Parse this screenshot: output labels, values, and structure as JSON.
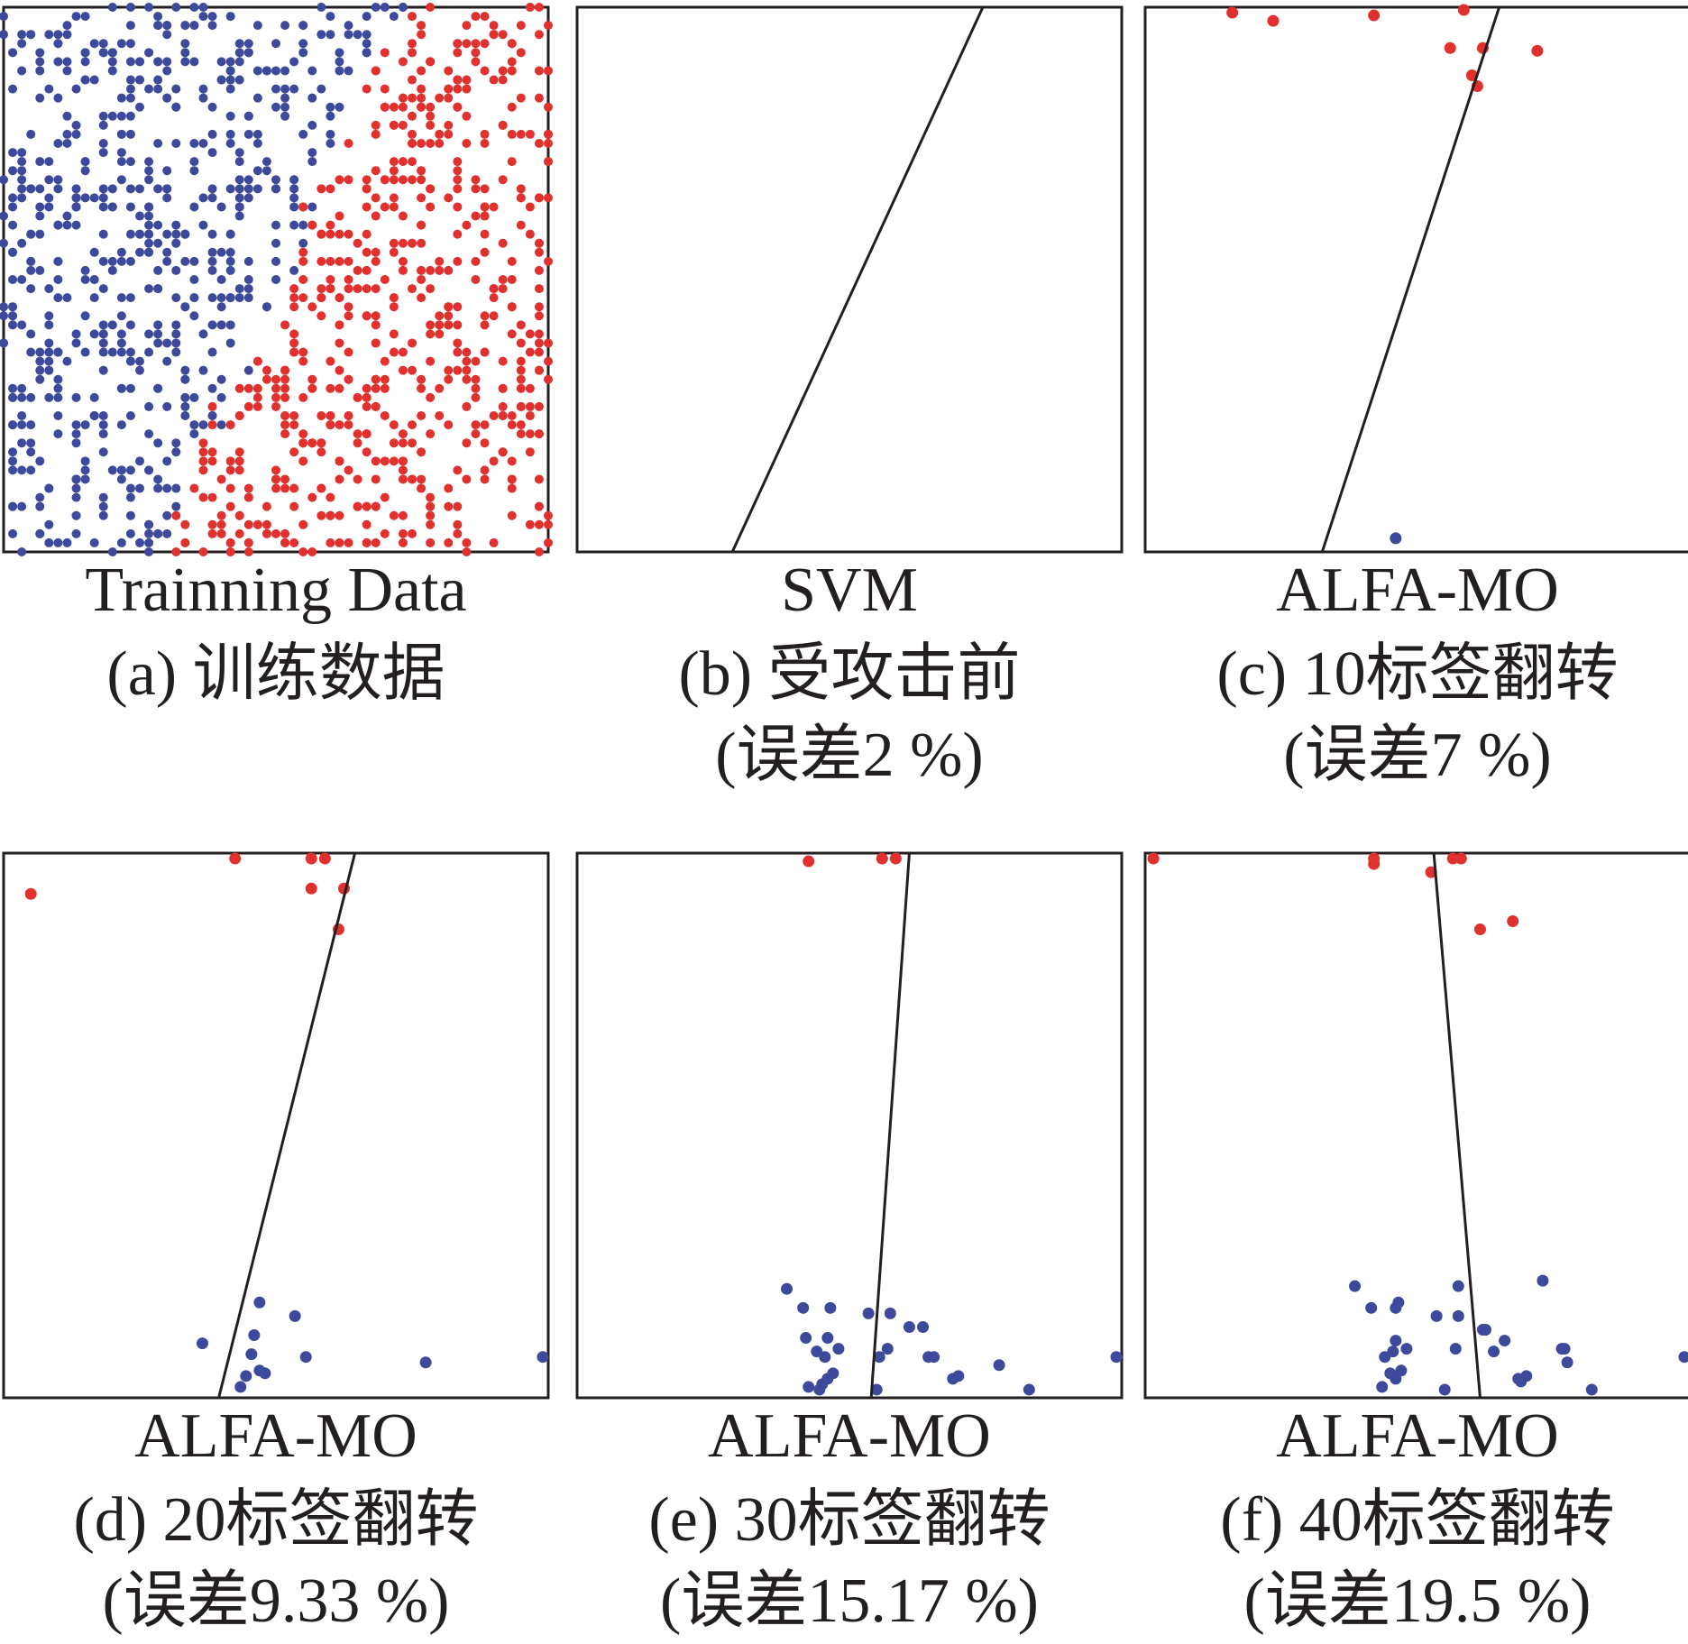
{
  "colors": {
    "class_pos": "#e0312f",
    "class_neg": "#3d4a9c",
    "line": "#231f20"
  },
  "chart_data": [
    {
      "id": "a",
      "type": "scatter",
      "captions": [
        "Trainning Data",
        "(a) 训练数据"
      ],
      "xlim": [
        0,
        1
      ],
      "ylim": [
        0,
        1
      ],
      "grid": false,
      "boundary": null,
      "generated": {
        "n_per_class": 600,
        "true_boundary": {
          "x_at_y0": 0.28,
          "x_at_y1": 0.74
        }
      },
      "series": []
    },
    {
      "id": "b",
      "type": "scatter",
      "captions": [
        "SVM",
        "(b) 受攻击前",
        "(误差2 %)"
      ],
      "xlim": [
        0,
        1
      ],
      "ylim": [
        0,
        1
      ],
      "grid": false,
      "boundary": {
        "x_at_y0": 0.285,
        "x_at_y1": 0.745
      },
      "series": []
    },
    {
      "id": "c",
      "type": "scatter",
      "captions": [
        "ALFA-MO",
        "(c) 10标签翻转",
        "(误差7 %)"
      ],
      "xlim": [
        0,
        1
      ],
      "ylim": [
        0,
        1
      ],
      "grid": false,
      "boundary": {
        "x_at_y0": 0.325,
        "x_at_y1": 0.65
      },
      "series": [
        {
          "class": "pos",
          "points": [
            [
              0.16,
              0.99
            ],
            [
              0.235,
              0.975
            ],
            [
              0.42,
              0.985
            ],
            [
              0.585,
              0.995
            ],
            [
              0.56,
              0.925
            ],
            [
              0.62,
              0.925
            ],
            [
              0.72,
              0.92
            ],
            [
              0.6,
              0.875
            ],
            [
              0.61,
              0.855
            ]
          ]
        },
        {
          "class": "neg",
          "points": [
            [
              0.46,
              0.025
            ]
          ]
        }
      ]
    },
    {
      "id": "d",
      "type": "scatter",
      "captions": [
        "ALFA-MO",
        "(d) 20标签翻转",
        "(误差9.33 %)"
      ],
      "xlim": [
        0,
        1
      ],
      "ylim": [
        0,
        1
      ],
      "grid": false,
      "boundary": {
        "x_at_y0": 0.395,
        "x_at_y1": 0.645
      },
      "series": [
        {
          "class": "pos",
          "points": [
            [
              0.05,
              0.925
            ],
            [
              0.425,
              0.99
            ],
            [
              0.565,
              0.99
            ],
            [
              0.59,
              0.99
            ],
            [
              0.565,
              0.935
            ],
            [
              0.625,
              0.935
            ],
            [
              0.615,
              0.86
            ]
          ]
        },
        {
          "class": "neg",
          "points": [
            [
              0.365,
              0.1
            ],
            [
              0.47,
              0.175
            ],
            [
              0.535,
              0.15
            ],
            [
              0.46,
              0.115
            ],
            [
              0.455,
              0.08
            ],
            [
              0.47,
              0.05
            ],
            [
              0.445,
              0.04
            ],
            [
              0.48,
              0.045
            ],
            [
              0.435,
              0.02
            ],
            [
              0.555,
              0.075
            ],
            [
              0.775,
              0.065
            ],
            [
              0.99,
              0.075
            ]
          ]
        }
      ]
    },
    {
      "id": "e",
      "type": "scatter",
      "captions": [
        "ALFA-MO",
        "(e) 30标签翻转",
        "(误差15.17 %)"
      ],
      "xlim": [
        0,
        1
      ],
      "ylim": [
        0,
        1
      ],
      "grid": false,
      "boundary": {
        "x_at_y0": 0.54,
        "x_at_y1": 0.61
      },
      "series": [
        {
          "class": "pos",
          "points": [
            [
              0.425,
              0.985
            ],
            [
              0.56,
              0.99
            ],
            [
              0.585,
              0.99
            ]
          ]
        },
        {
          "class": "neg",
          "points": [
            [
              0.385,
              0.2
            ],
            [
              0.415,
              0.165
            ],
            [
              0.465,
              0.165
            ],
            [
              0.535,
              0.155
            ],
            [
              0.575,
              0.155
            ],
            [
              0.61,
              0.13
            ],
            [
              0.635,
              0.13
            ],
            [
              0.42,
              0.11
            ],
            [
              0.46,
              0.11
            ],
            [
              0.44,
              0.085
            ],
            [
              0.48,
              0.09
            ],
            [
              0.455,
              0.075
            ],
            [
              0.57,
              0.09
            ],
            [
              0.645,
              0.075
            ],
            [
              0.655,
              0.075
            ],
            [
              0.555,
              0.075
            ],
            [
              0.47,
              0.045
            ],
            [
              0.46,
              0.035
            ],
            [
              0.45,
              0.025
            ],
            [
              0.425,
              0.02
            ],
            [
              0.445,
              0.015
            ],
            [
              0.55,
              0.015
            ],
            [
              0.69,
              0.035
            ],
            [
              0.7,
              0.04
            ],
            [
              0.775,
              0.06
            ],
            [
              0.83,
              0.015
            ],
            [
              0.99,
              0.075
            ]
          ]
        }
      ]
    },
    {
      "id": "f",
      "type": "scatter",
      "captions": [
        "ALFA-MO",
        "(f) 40标签翻转",
        "(误差19.5 %)"
      ],
      "xlim": [
        0,
        1
      ],
      "ylim": [
        0,
        1
      ],
      "grid": false,
      "boundary": {
        "x_at_y0": 0.615,
        "x_at_y1": 0.53
      },
      "series": [
        {
          "class": "pos",
          "points": [
            [
              0.015,
              0.99
            ],
            [
              0.42,
              0.99
            ],
            [
              0.42,
              0.98
            ],
            [
              0.565,
              0.99
            ],
            [
              0.58,
              0.99
            ],
            [
              0.525,
              0.965
            ],
            [
              0.615,
              0.86
            ],
            [
              0.675,
              0.875
            ]
          ]
        },
        {
          "class": "neg",
          "points": [
            [
              0.385,
              0.205
            ],
            [
              0.415,
              0.165
            ],
            [
              0.465,
              0.175
            ],
            [
              0.46,
              0.165
            ],
            [
              0.535,
              0.15
            ],
            [
              0.575,
              0.15
            ],
            [
              0.575,
              0.205
            ],
            [
              0.62,
              0.125
            ],
            [
              0.625,
              0.125
            ],
            [
              0.64,
              0.085
            ],
            [
              0.73,
              0.215
            ],
            [
              0.66,
              0.105
            ],
            [
              0.765,
              0.09
            ],
            [
              0.77,
              0.09
            ],
            [
              0.775,
              0.065
            ],
            [
              0.46,
              0.105
            ],
            [
              0.48,
              0.09
            ],
            [
              0.455,
              0.085
            ],
            [
              0.57,
              0.09
            ],
            [
              0.44,
              0.075
            ],
            [
              0.47,
              0.05
            ],
            [
              0.45,
              0.045
            ],
            [
              0.46,
              0.035
            ],
            [
              0.435,
              0.02
            ],
            [
              0.55,
              0.015
            ],
            [
              0.685,
              0.035
            ],
            [
              0.7,
              0.04
            ],
            [
              0.69,
              0.03
            ],
            [
              0.82,
              0.015
            ],
            [
              0.99,
              0.075
            ]
          ]
        }
      ]
    }
  ]
}
